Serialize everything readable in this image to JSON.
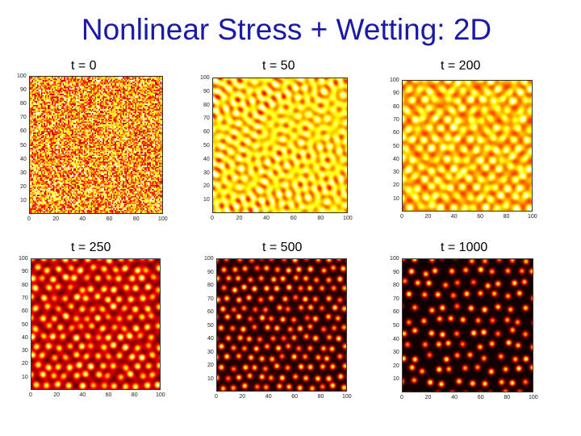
{
  "slide": {
    "title": "Nonlinear Stress + Wetting: 2D"
  },
  "colormap": "hot",
  "panels": [
    {
      "title": "t = 0",
      "time": 0,
      "pattern": "random-noise"
    },
    {
      "title": "t = 50",
      "time": 50,
      "pattern": "labyrinth"
    },
    {
      "title": "t = 200",
      "time": 200,
      "pattern": "dots-in-network"
    },
    {
      "title": "t = 250",
      "time": 250,
      "pattern": "dots-forming"
    },
    {
      "title": "t = 500",
      "time": 500,
      "pattern": "dots"
    },
    {
      "title": "t = 1000",
      "time": 1000,
      "pattern": "sparse-dots"
    }
  ],
  "axes": {
    "x_ticks": [
      "0",
      "20",
      "40",
      "60",
      "80",
      "100"
    ],
    "y_ticks": [
      "10",
      "20",
      "30",
      "40",
      "50",
      "60",
      "70",
      "80",
      "90",
      "100"
    ],
    "xlim": [
      0,
      100
    ],
    "ylim": [
      0,
      100
    ]
  }
}
